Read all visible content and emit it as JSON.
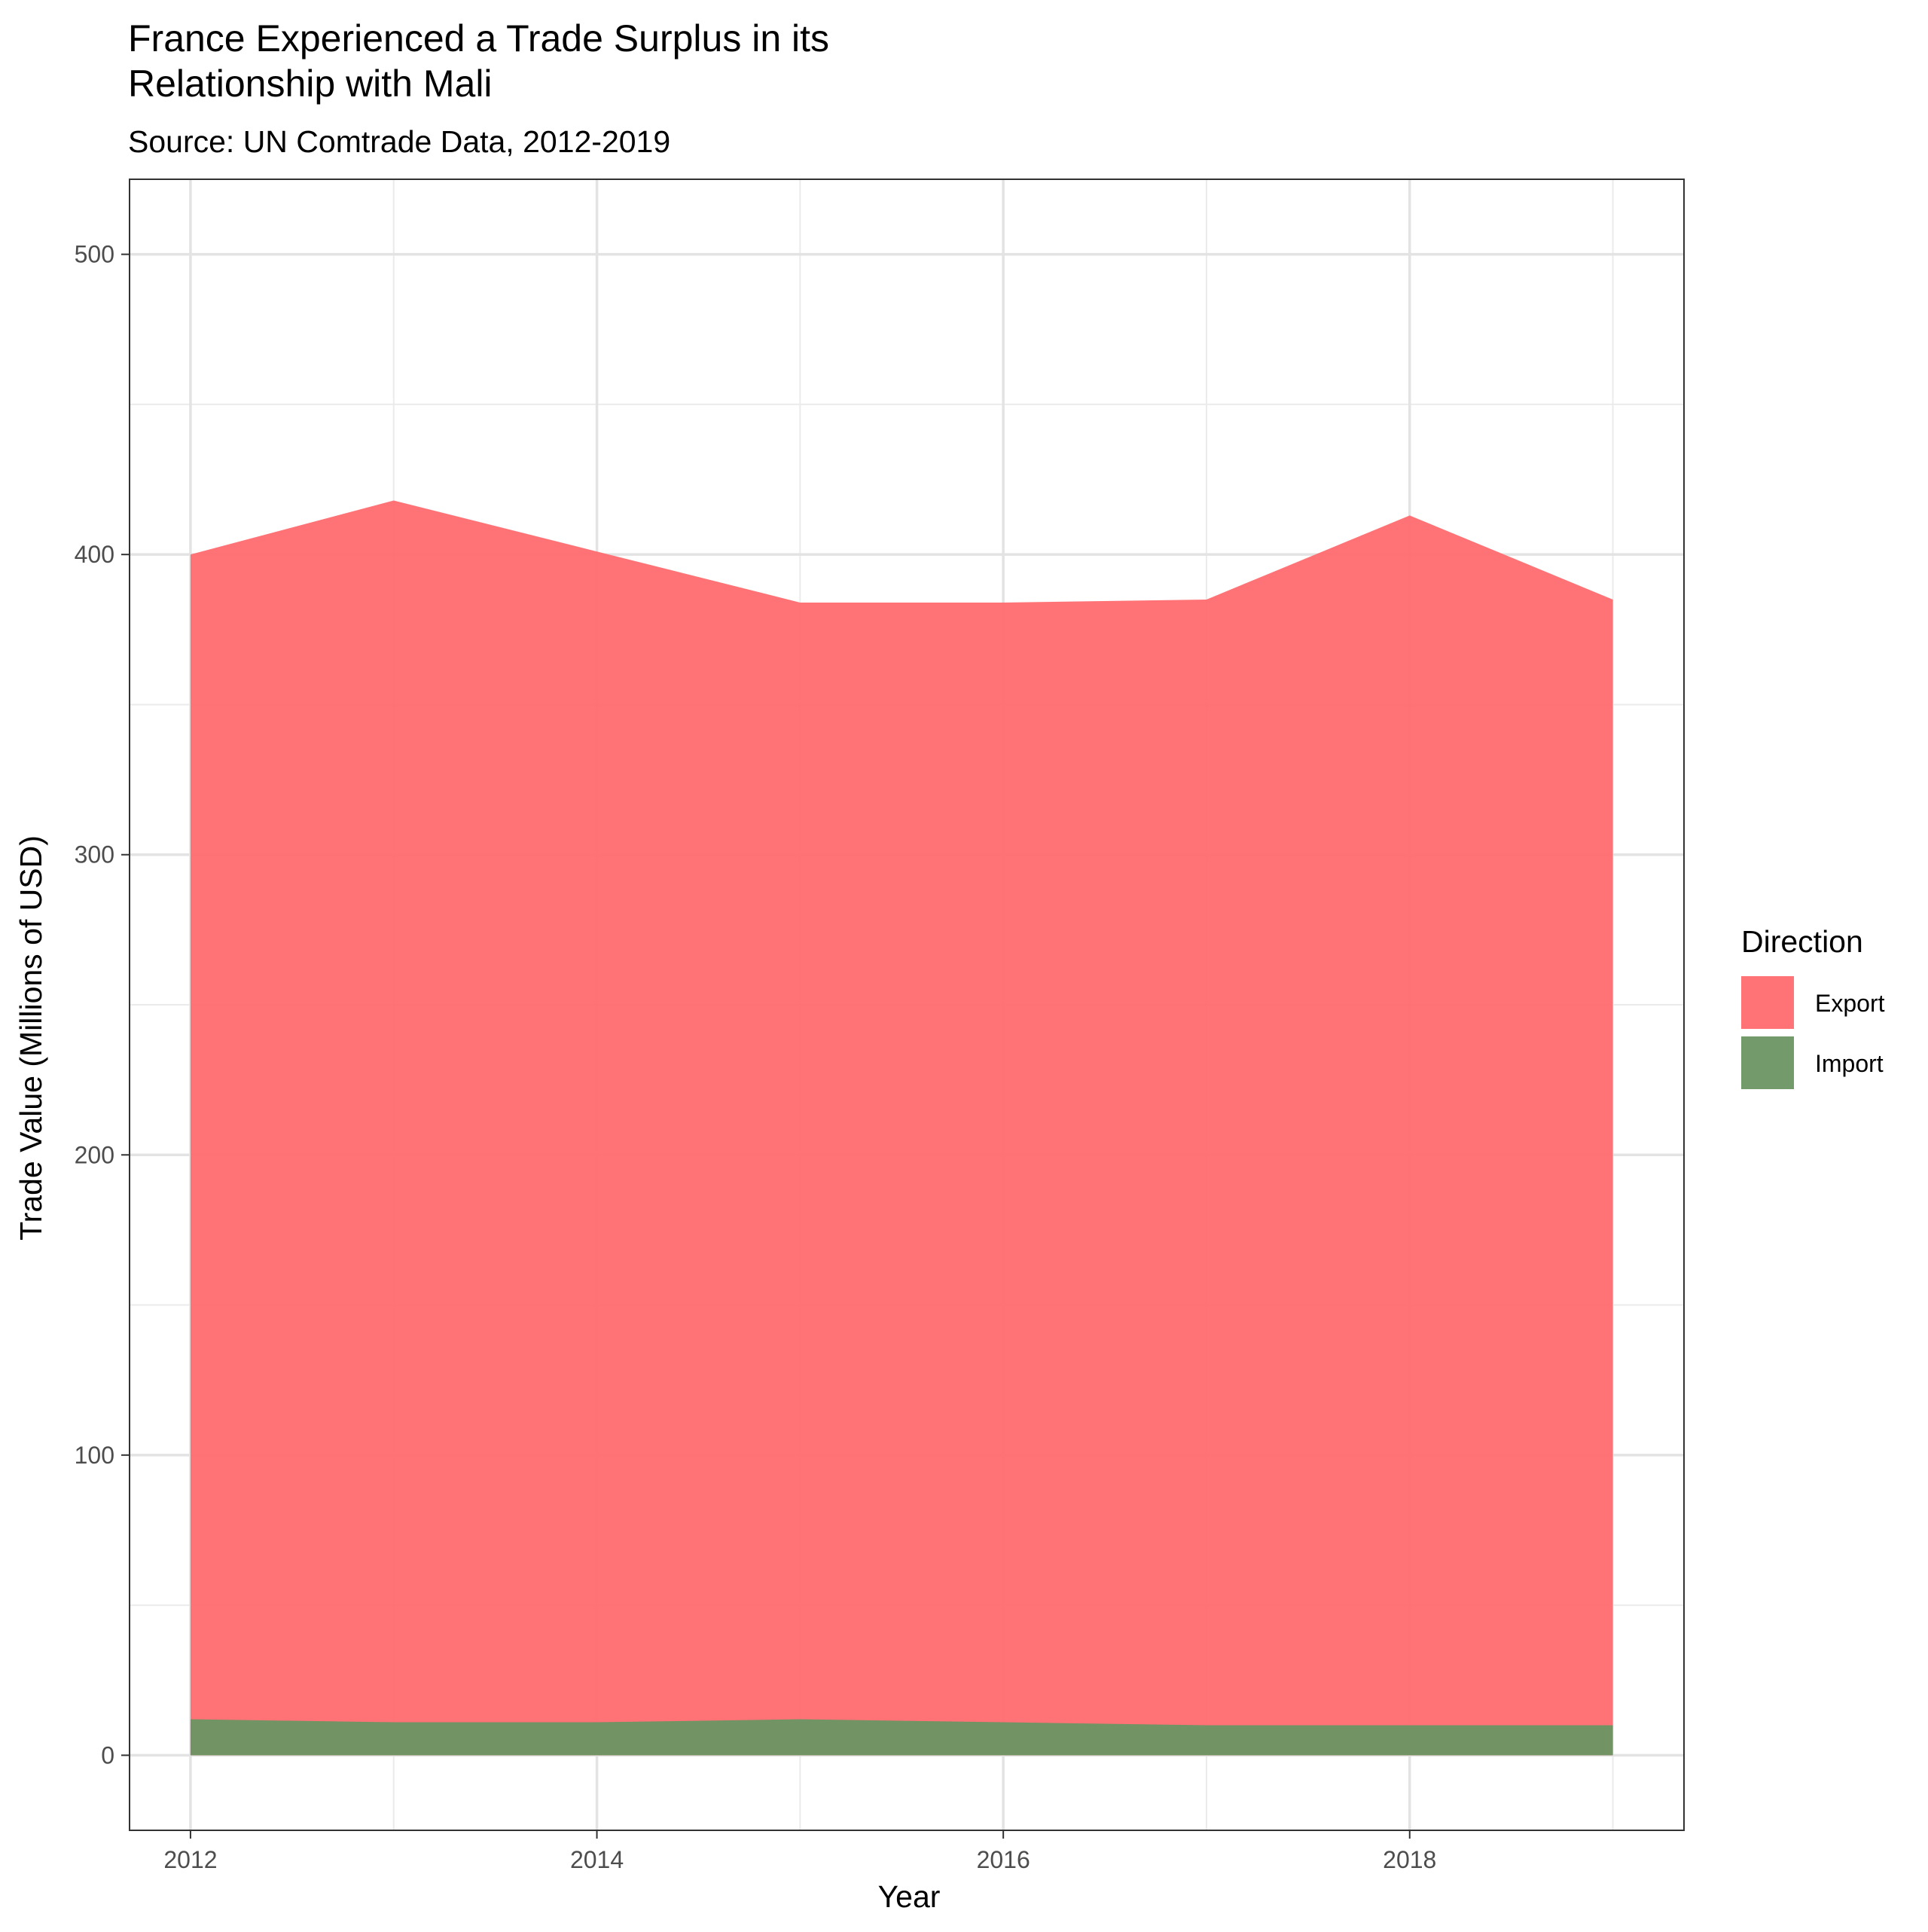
{
  "chart_data": {
    "type": "area",
    "title_lines": [
      "France Experienced a Trade Surplus in its",
      "Relationship with Mali"
    ],
    "subtitle": "Source: UN Comtrade Data, 2012-2019",
    "xlabel": "Year",
    "ylabel": "Trade Value (Millions of USD)",
    "x": [
      2012,
      2013,
      2014,
      2015,
      2016,
      2017,
      2018,
      2019
    ],
    "xlim": [
      2011.7,
      2019.35
    ],
    "ylim": [
      -25,
      525
    ],
    "x_ticks": [
      2012,
      2014,
      2016,
      2018
    ],
    "x_tick_labels": [
      "2012",
      "2014",
      "2016",
      "2018"
    ],
    "y_ticks": [
      0,
      100,
      200,
      300,
      400,
      500
    ],
    "y_tick_labels": [
      "0",
      "100",
      "200",
      "300",
      "400",
      "500"
    ],
    "grid": true,
    "stacked": false,
    "legend": {
      "title": "Direction",
      "position": "right"
    },
    "series": [
      {
        "name": "Export",
        "color": "#ff6a6f",
        "values": [
          400,
          418,
          401,
          384,
          384,
          385,
          413,
          385
        ]
      },
      {
        "name": "Import",
        "color": "#6a9562",
        "values": [
          12,
          11,
          11,
          12,
          11,
          10,
          10,
          10
        ]
      }
    ]
  }
}
